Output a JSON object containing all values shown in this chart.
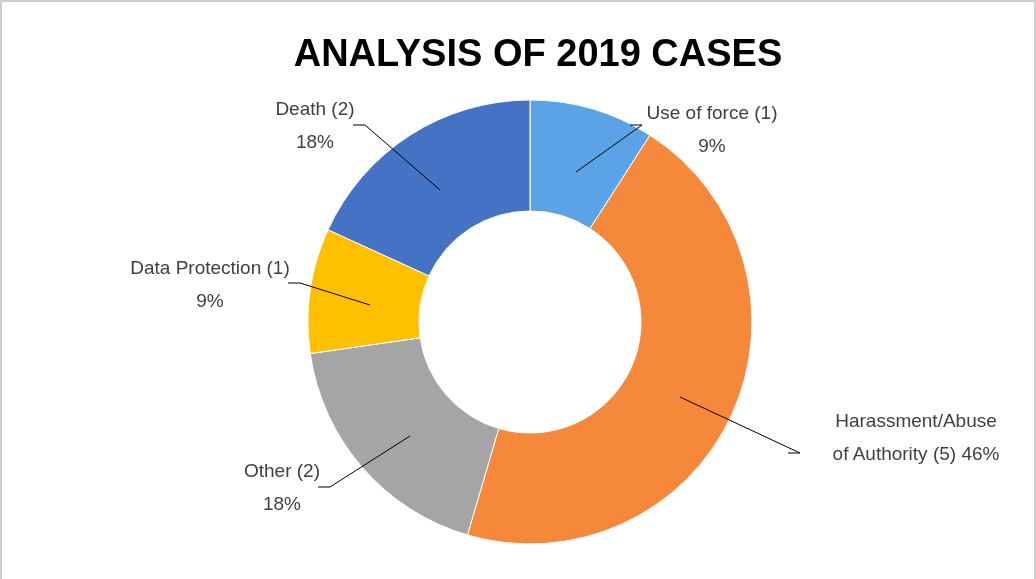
{
  "chart_data": {
    "type": "donut",
    "title": "ANALYSIS OF 2019 CASES",
    "categories": [
      "Use of force",
      "Harassment/Abuse of Authority",
      "Other",
      "Data Protection",
      "Death"
    ],
    "values": [
      1,
      5,
      2,
      1,
      2
    ],
    "value_labels": [
      "(1) 9%",
      "(5) 46%",
      "(2) 18%",
      "(1) 9%",
      "(2) 18%"
    ],
    "colors": [
      "#5ba3e6",
      "#f5883a",
      "#a5a5a5",
      "#ffc000",
      "#4472c4"
    ],
    "legend": false
  }
}
